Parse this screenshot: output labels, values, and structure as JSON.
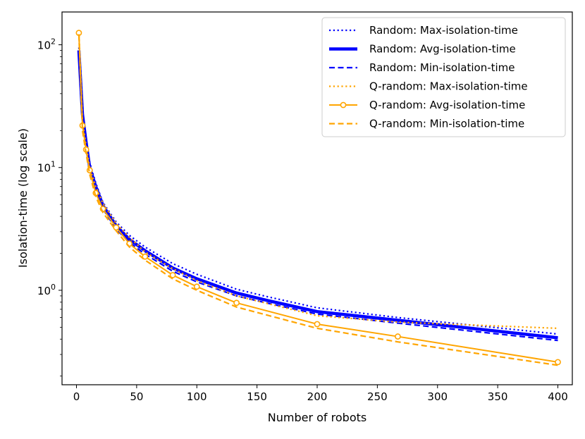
{
  "chart_data": {
    "type": "line",
    "xlabel": "Number of robots",
    "ylabel": "Isolation-time (log scale)",
    "xlim": [
      -12,
      412
    ],
    "ylim": [
      0.17,
      185
    ],
    "yscale": "log",
    "grid": false,
    "legend_position": "top-right",
    "x_ticks": [
      0,
      50,
      100,
      150,
      200,
      250,
      300,
      350,
      400
    ],
    "x_tick_labels": [
      "0",
      "50",
      "100",
      "150",
      "200",
      "250",
      "300",
      "350",
      "400"
    ],
    "y_ticks": [
      {
        "value": 1,
        "base": "10",
        "exp": "0"
      },
      {
        "value": 10,
        "base": "10",
        "exp": "1"
      },
      {
        "value": 100,
        "base": "10",
        "exp": "2"
      }
    ],
    "series": [
      {
        "name": "Random: Max-isolation-time",
        "color": "#0000ff",
        "style": "dotted",
        "marker": "none",
        "x": [
          2,
          5,
          8,
          11,
          16,
          22,
          33,
          44,
          57,
          80,
          100,
          133,
          160,
          200,
          267,
          400
        ],
        "y": [
          95,
          29,
          17,
          11,
          7.5,
          5.2,
          3.6,
          2.8,
          2.25,
          1.65,
          1.35,
          1.02,
          0.88,
          0.72,
          0.6,
          0.44
        ]
      },
      {
        "name": "Random: Avg-isolation-time",
        "color": "#0000ff",
        "style": "solid-thick",
        "marker": "none",
        "x": [
          2,
          5,
          8,
          11,
          16,
          22,
          33,
          44,
          57,
          80,
          100,
          133,
          160,
          200,
          267,
          400
        ],
        "y": [
          90,
          27,
          16,
          10,
          7,
          4.9,
          3.35,
          2.6,
          2.1,
          1.52,
          1.24,
          0.95,
          0.82,
          0.67,
          0.57,
          0.41
        ]
      },
      {
        "name": "Random: Min-isolation-time",
        "color": "#0000ff",
        "style": "dashed",
        "marker": "none",
        "x": [
          2,
          5,
          8,
          11,
          16,
          22,
          33,
          44,
          57,
          80,
          100,
          133,
          160,
          200,
          267,
          400
        ],
        "y": [
          85,
          25.5,
          15,
          9.5,
          6.6,
          4.6,
          3.15,
          2.45,
          1.97,
          1.43,
          1.17,
          0.9,
          0.78,
          0.64,
          0.54,
          0.39
        ]
      },
      {
        "name": "Q-random: Max-isolation-time",
        "color": "#ffa500",
        "style": "dotted",
        "marker": "none",
        "x": [
          2,
          5,
          8,
          11,
          16,
          22,
          33,
          44,
          57,
          80,
          100,
          133,
          200,
          267,
          400
        ],
        "y": [
          128,
          24,
          15,
          10,
          7,
          5.1,
          3.5,
          2.7,
          2.05,
          1.5,
          1.2,
          0.9,
          0.62,
          0.55,
          0.49
        ]
      },
      {
        "name": "Q-random: Avg-isolation-time",
        "color": "#ffa500",
        "style": "solid",
        "marker": "circle",
        "x": [
          2,
          5,
          8,
          11,
          16,
          22,
          33,
          44,
          57,
          80,
          100,
          133,
          200,
          267,
          400
        ],
        "y": [
          125,
          22,
          14,
          9.5,
          6.2,
          4.6,
          3.25,
          2.4,
          1.88,
          1.33,
          1.07,
          0.79,
          0.53,
          0.42,
          0.26
        ]
      },
      {
        "name": "Q-random: Min-isolation-time",
        "color": "#ffa500",
        "style": "dashed",
        "marker": "none",
        "x": [
          2,
          5,
          8,
          11,
          16,
          22,
          33,
          44,
          57,
          80,
          100,
          133,
          200,
          267,
          400
        ],
        "y": [
          122,
          20,
          13,
          8.8,
          5.8,
          4.3,
          3.05,
          2.25,
          1.76,
          1.24,
          1.0,
          0.73,
          0.49,
          0.38,
          0.245
        ]
      }
    ]
  }
}
